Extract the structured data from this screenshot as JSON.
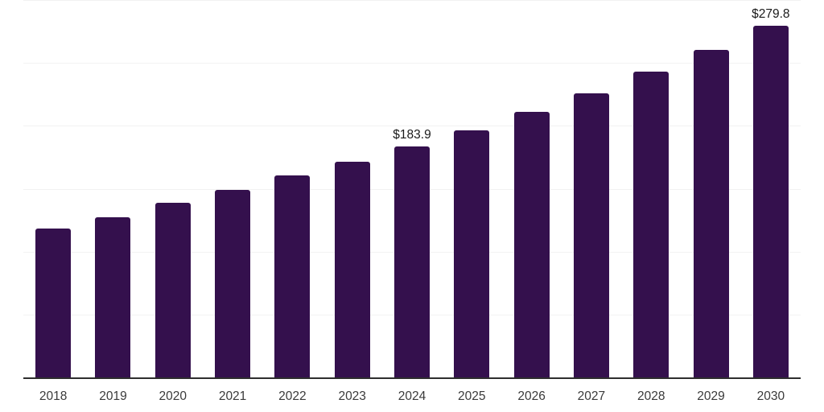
{
  "chart_data": {
    "type": "bar",
    "title": "",
    "xlabel": "",
    "ylabel": "",
    "categories": [
      "2018",
      "2019",
      "2020",
      "2021",
      "2022",
      "2023",
      "2024",
      "2025",
      "2026",
      "2027",
      "2028",
      "2029",
      "2030"
    ],
    "values": [
      118.6,
      127.6,
      139.0,
      149.1,
      160.3,
      171.2,
      183.9,
      196.6,
      211.0,
      226.0,
      242.8,
      260.5,
      279.8
    ],
    "annotations": [
      {
        "category": "2024",
        "text": "$183.9"
      },
      {
        "category": "2030",
        "text": "$279.8"
      }
    ],
    "ylim": [
      0,
      300
    ],
    "ytick_step": 50,
    "grid": "horizontal",
    "y_axis_tick_labels_visible": false,
    "legend_position": "none"
  },
  "colors": {
    "background": "#ffffff",
    "bar": "#34104d",
    "gridline": "#f2f2f2",
    "axis_line": "#2e2e2e",
    "tick_label": "#3a3a3a",
    "value_label": "#1a1a1a"
  }
}
